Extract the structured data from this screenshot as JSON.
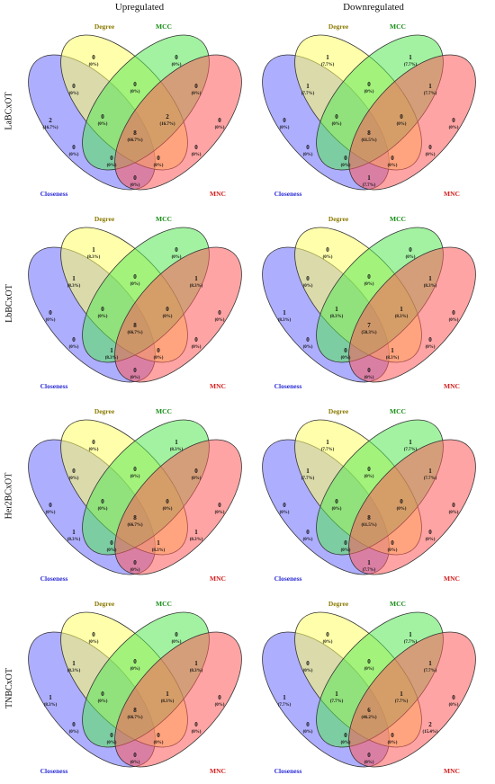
{
  "columns": [
    "Upregulated",
    "Downregulated"
  ],
  "rows": [
    "LaBCxOT",
    "LbBCxOT",
    "Her2BCxOT",
    "TNBCxOT"
  ],
  "sets": [
    {
      "name": "Closeness",
      "color": "#2b2bd6",
      "fill": "#6b6bff"
    },
    {
      "name": "Degree",
      "color": "#8a7a00",
      "fill": "#ffff66"
    },
    {
      "name": "MCC",
      "color": "#138a13",
      "fill": "#55e855"
    },
    {
      "name": "MNC",
      "color": "#d41a1a",
      "fill": "#ff5a5a"
    }
  ],
  "panels": [
    [
      {
        "A": [
          "2",
          "(16.7%)"
        ],
        "B": [
          "0",
          "(0%)"
        ],
        "C": [
          "0",
          "(0%)"
        ],
        "D": [
          "0",
          "(0%)"
        ],
        "AB": [
          "0",
          "(0%)"
        ],
        "BC": [
          "0",
          "(0%)"
        ],
        "CD": [
          "0",
          "(0%)"
        ],
        "AC": [
          "0",
          "(0%)"
        ],
        "BD": [
          "0",
          "(0%)"
        ],
        "AD": [
          "0",
          "(0%)"
        ],
        "ABC": [
          "0",
          "(0%)"
        ],
        "BCD": [
          "2",
          "(16.7%)"
        ],
        "ABD": [
          "0",
          "(0%)"
        ],
        "ACD": [
          "0",
          "(0%)"
        ],
        "ABCD": [
          "8",
          "(66.7%)"
        ]
      },
      {
        "A": [
          "0",
          "(0%)"
        ],
        "B": [
          "1",
          "(7.7%)"
        ],
        "C": [
          "1",
          "(7.7%)"
        ],
        "D": [
          "0",
          "(0%)"
        ],
        "AB": [
          "1",
          "(7.7%)"
        ],
        "BC": [
          "0",
          "(0%)"
        ],
        "CD": [
          "1",
          "(7.7%)"
        ],
        "AC": [
          "0",
          "(0%)"
        ],
        "BD": [
          "0",
          "(0%)"
        ],
        "AD": [
          "1",
          "(7.7%)"
        ],
        "ABC": [
          "0",
          "(0%)"
        ],
        "BCD": [
          "0",
          "(0%)"
        ],
        "ABD": [
          "0",
          "(0%)"
        ],
        "ACD": [
          "0",
          "(0%)"
        ],
        "ABCD": [
          "8",
          "(61.5%)"
        ]
      }
    ],
    [
      {
        "A": [
          "0",
          "(0%)"
        ],
        "B": [
          "1",
          "(8.3%)"
        ],
        "C": [
          "0",
          "(0%)"
        ],
        "D": [
          "0",
          "(0%)"
        ],
        "AB": [
          "1",
          "(8.3%)"
        ],
        "BC": [
          "0",
          "(0%)"
        ],
        "CD": [
          "1",
          "(8.3%)"
        ],
        "AC": [
          "0",
          "(0%)"
        ],
        "BD": [
          "0",
          "(0%)"
        ],
        "AD": [
          "0",
          "(0%)"
        ],
        "ABC": [
          "0",
          "(0%)"
        ],
        "BCD": [
          "0",
          "(0%)"
        ],
        "ABD": [
          "1",
          "(8.3%)"
        ],
        "ACD": [
          "0",
          "(0%)"
        ],
        "ABCD": [
          "8",
          "(66.7%)"
        ]
      },
      {
        "A": [
          "1",
          "(8.3%)"
        ],
        "B": [
          "0",
          "(0%)"
        ],
        "C": [
          "0",
          "(0%)"
        ],
        "D": [
          "0",
          "(0%)"
        ],
        "AB": [
          "0",
          "(0%)"
        ],
        "BC": [
          "0",
          "(0%)"
        ],
        "CD": [
          "1",
          "(8.3%)"
        ],
        "AC": [
          "0",
          "(0%)"
        ],
        "BD": [
          "0",
          "(0%)"
        ],
        "AD": [
          "0",
          "(0%)"
        ],
        "ABC": [
          "1",
          "(8.3%)"
        ],
        "BCD": [
          "1",
          "(8.3%)"
        ],
        "ABD": [
          "0",
          "(0%)"
        ],
        "ACD": [
          "1",
          "(8.3%)"
        ],
        "ABCD": [
          "7",
          "(58.3%)"
        ]
      }
    ],
    [
      {
        "A": [
          "0",
          "(0%)"
        ],
        "B": [
          "0",
          "(0%)"
        ],
        "C": [
          "1",
          "(8.3%)"
        ],
        "D": [
          "0",
          "(0%)"
        ],
        "AB": [
          "0",
          "(0%)"
        ],
        "BC": [
          "0",
          "(0%)"
        ],
        "CD": [
          "0",
          "(0%)"
        ],
        "AC": [
          "1",
          "(8.3%)"
        ],
        "BD": [
          "1",
          "(8.3%)"
        ],
        "AD": [
          "0",
          "(0%)"
        ],
        "ABC": [
          "0",
          "(0%)"
        ],
        "BCD": [
          "0",
          "(0%)"
        ],
        "ABD": [
          "0",
          "(0%)"
        ],
        "ACD": [
          "1",
          "(8.3%)"
        ],
        "ABCD": [
          "8",
          "(66.7%)"
        ]
      },
      {
        "A": [
          "0",
          "(0%)"
        ],
        "B": [
          "1",
          "(7.7%)"
        ],
        "C": [
          "1",
          "(7.7%)"
        ],
        "D": [
          "0",
          "(0%)"
        ],
        "AB": [
          "1",
          "(7.7%)"
        ],
        "BC": [
          "0",
          "(0%)"
        ],
        "CD": [
          "1",
          "(7.7%)"
        ],
        "AC": [
          "0",
          "(0%)"
        ],
        "BD": [
          "0",
          "(0%)"
        ],
        "AD": [
          "1",
          "(7.7%)"
        ],
        "ABC": [
          "0",
          "(0%)"
        ],
        "BCD": [
          "0",
          "(0%)"
        ],
        "ABD": [
          "0",
          "(0%)"
        ],
        "ACD": [
          "0",
          "(0%)"
        ],
        "ABCD": [
          "8",
          "(61.5%)"
        ]
      }
    ],
    [
      {
        "A": [
          "1",
          "(8.3%)"
        ],
        "B": [
          "0",
          "(0%)"
        ],
        "C": [
          "0",
          "(0%)"
        ],
        "D": [
          "0",
          "(0%)"
        ],
        "AB": [
          "1",
          "(8.3%)"
        ],
        "BC": [
          "0",
          "(0%)"
        ],
        "CD": [
          "1",
          "(8.3%)"
        ],
        "AC": [
          "0",
          "(0%)"
        ],
        "BD": [
          "0",
          "(0%)"
        ],
        "AD": [
          "0",
          "(0%)"
        ],
        "ABC": [
          "0",
          "(0%)"
        ],
        "BCD": [
          "1",
          "(8.3%)"
        ],
        "ABD": [
          "0",
          "(0%)"
        ],
        "ACD": [
          "0",
          "(0%)"
        ],
        "ABCD": [
          "8",
          "(66.7%)"
        ]
      },
      {
        "A": [
          "1",
          "(7.7%)"
        ],
        "B": [
          "0",
          "(0%)"
        ],
        "C": [
          "1",
          "(7.7%)"
        ],
        "D": [
          "0",
          "(0%)"
        ],
        "AB": [
          "0",
          "(0%)"
        ],
        "BC": [
          "0",
          "(0%)"
        ],
        "CD": [
          "1",
          "(7.7%)"
        ],
        "AC": [
          "0",
          "(0%)"
        ],
        "BD": [
          "2",
          "(15.4%)"
        ],
        "AD": [
          "0",
          "(0%)"
        ],
        "ABC": [
          "1",
          "(7.7%)"
        ],
        "BCD": [
          "1",
          "(7.7%)"
        ],
        "ABD": [
          "0",
          "(0%)"
        ],
        "ACD": [
          "0",
          "(0%)"
        ],
        "ABCD": [
          "6",
          "(46.2%)"
        ]
      }
    ]
  ]
}
